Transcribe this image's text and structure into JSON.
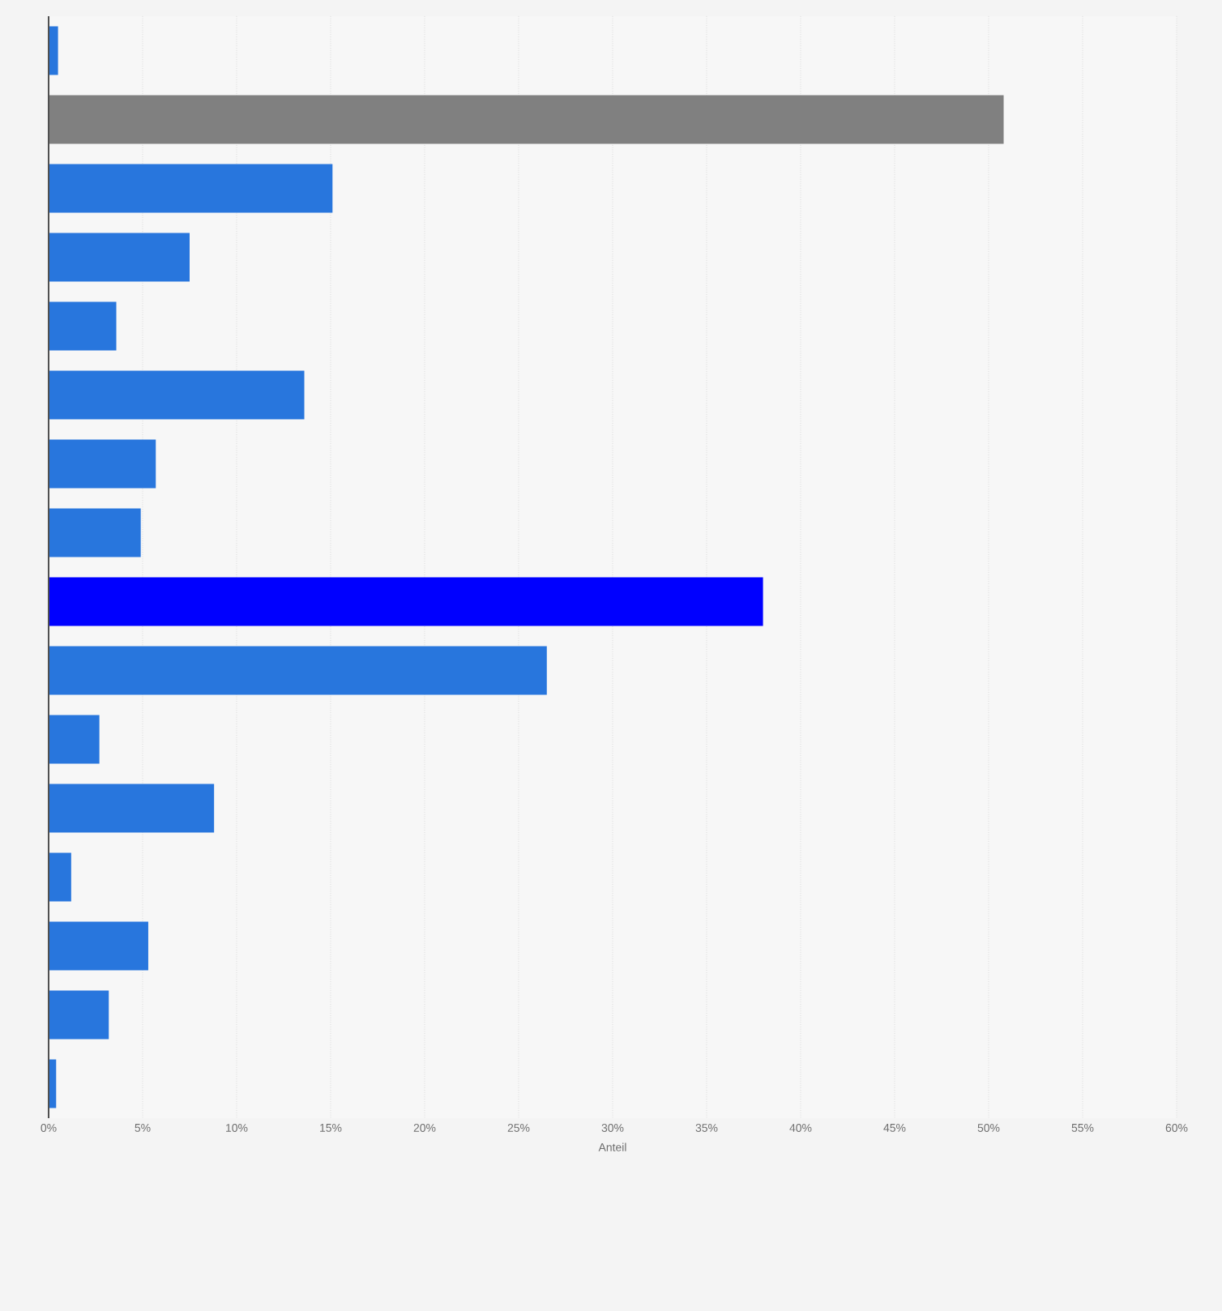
{
  "chart_data": {
    "type": "bar",
    "orientation": "horizontal",
    "xlabel": "Anteil",
    "categories": [
      null,
      null,
      null,
      null,
      null,
      null,
      null,
      null,
      null,
      null,
      null,
      null,
      null,
      null,
      null,
      null
    ],
    "values": [
      0.5,
      50.8,
      15.1,
      7.5,
      3.6,
      13.6,
      5.7,
      4.9,
      38.0,
      26.5,
      2.7,
      8.8,
      1.2,
      5.3,
      3.2,
      0.4
    ],
    "colors": [
      "#2876dd",
      "#808080",
      "#2876dd",
      "#2876dd",
      "#2876dd",
      "#2876dd",
      "#2876dd",
      "#2876dd",
      "#0000ff",
      "#2876dd",
      "#2876dd",
      "#2876dd",
      "#2876dd",
      "#2876dd",
      "#2876dd",
      "#2876dd"
    ],
    "xlim": [
      0,
      60
    ],
    "xticks": [
      {
        "value": 0,
        "label": "0%"
      },
      {
        "value": 5,
        "label": "5%"
      },
      {
        "value": 10,
        "label": "10%"
      },
      {
        "value": 15,
        "label": "15%"
      },
      {
        "value": 20,
        "label": "20%"
      },
      {
        "value": 25,
        "label": "25%"
      },
      {
        "value": 30,
        "label": "30%"
      },
      {
        "value": 35,
        "label": "35%"
      },
      {
        "value": 40,
        "label": "40%"
      },
      {
        "value": 45,
        "label": "45%"
      },
      {
        "value": 50,
        "label": "50%"
      },
      {
        "value": 55,
        "label": "55%"
      },
      {
        "value": 60,
        "label": "60%"
      }
    ],
    "grid": "x"
  }
}
